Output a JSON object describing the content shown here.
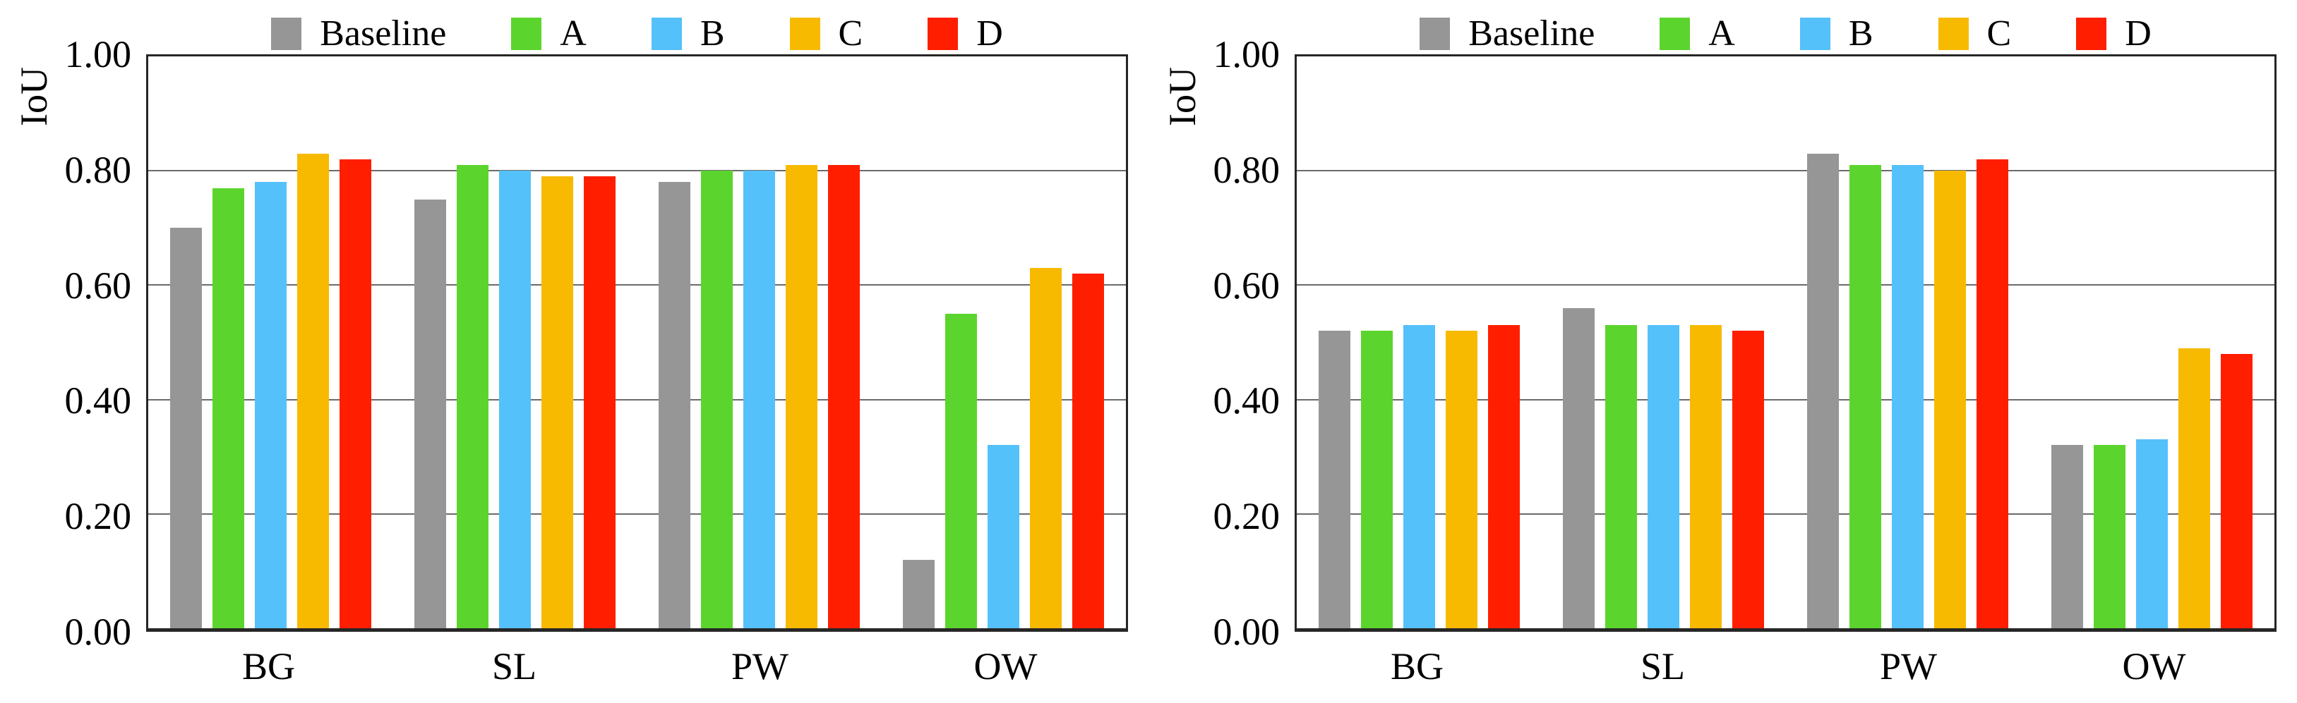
{
  "colors": {
    "baseline_gray": "#969696",
    "a_green": "#5BD52D",
    "b_blue": "#55C1FA",
    "c_orange": "#F7BA00",
    "d_red": "#FF1E00",
    "axis_border": "#262626",
    "gridline": "#6B6B6B"
  },
  "chart_data": [
    {
      "type": "bar",
      "title": "",
      "ylabel": "IoU",
      "xlabel": "",
      "ylim": [
        0,
        1
      ],
      "yticks": [
        "1.00",
        "0.80",
        "0.60",
        "0.40",
        "0.20",
        "0.00"
      ],
      "grid": "horizontal",
      "legend_position": "top-center",
      "categories": [
        "BG",
        "SL",
        "PW",
        "OW"
      ],
      "series": [
        {
          "name": "Baseline",
          "color": "#969696",
          "values": [
            0.7,
            0.75,
            0.78,
            0.12
          ]
        },
        {
          "name": "A",
          "color": "#5BD52D",
          "values": [
            0.77,
            0.81,
            0.8,
            0.55
          ]
        },
        {
          "name": "B",
          "color": "#55C1FA",
          "values": [
            0.78,
            0.8,
            0.8,
            0.32
          ]
        },
        {
          "name": "C",
          "color": "#F7BA00",
          "values": [
            0.83,
            0.79,
            0.81,
            0.63
          ]
        },
        {
          "name": "D",
          "color": "#FF1E00",
          "values": [
            0.82,
            0.79,
            0.81,
            0.62
          ]
        }
      ]
    },
    {
      "type": "bar",
      "title": "",
      "ylabel": "IoU",
      "xlabel": "",
      "ylim": [
        0,
        1
      ],
      "yticks": [
        "1.00",
        "0.80",
        "0.60",
        "0.40",
        "0.20",
        "0.00"
      ],
      "grid": "horizontal",
      "legend_position": "top-center",
      "categories": [
        "BG",
        "SL",
        "PW",
        "OW"
      ],
      "series": [
        {
          "name": "Baseline",
          "color": "#969696",
          "values": [
            0.52,
            0.56,
            0.83,
            0.32
          ]
        },
        {
          "name": "A",
          "color": "#5BD52D",
          "values": [
            0.52,
            0.53,
            0.81,
            0.32
          ]
        },
        {
          "name": "B",
          "color": "#55C1FA",
          "values": [
            0.53,
            0.53,
            0.81,
            0.33
          ]
        },
        {
          "name": "C",
          "color": "#F7BA00",
          "values": [
            0.52,
            0.53,
            0.8,
            0.49
          ]
        },
        {
          "name": "D",
          "color": "#FF1E00",
          "values": [
            0.53,
            0.52,
            0.82,
            0.48
          ]
        }
      ]
    }
  ]
}
